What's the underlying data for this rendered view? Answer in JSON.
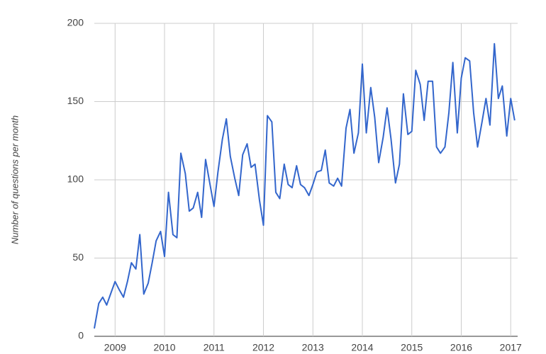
{
  "chart_data": {
    "type": "line",
    "y_label": "Number of questions per month",
    "x": [
      2008.58,
      2008.67,
      2008.75,
      2008.83,
      2008.92,
      2009.0,
      2009.08,
      2009.17,
      2009.25,
      2009.33,
      2009.42,
      2009.5,
      2009.58,
      2009.67,
      2009.75,
      2009.83,
      2009.92,
      2010.0,
      2010.08,
      2010.17,
      2010.25,
      2010.33,
      2010.42,
      2010.5,
      2010.58,
      2010.67,
      2010.75,
      2010.83,
      2010.92,
      2011.0,
      2011.08,
      2011.17,
      2011.25,
      2011.33,
      2011.42,
      2011.5,
      2011.58,
      2011.67,
      2011.75,
      2011.83,
      2011.92,
      2012.0,
      2012.08,
      2012.17,
      2012.25,
      2012.33,
      2012.42,
      2012.5,
      2012.58,
      2012.67,
      2012.75,
      2012.83,
      2012.92,
      2013.0,
      2013.08,
      2013.17,
      2013.25,
      2013.33,
      2013.42,
      2013.5,
      2013.58,
      2013.67,
      2013.75,
      2013.83,
      2013.92,
      2014.0,
      2014.08,
      2014.17,
      2014.25,
      2014.33,
      2014.42,
      2014.5,
      2014.58,
      2014.67,
      2014.75,
      2014.83,
      2014.92,
      2015.0,
      2015.08,
      2015.17,
      2015.25,
      2015.33,
      2015.42,
      2015.5,
      2015.58,
      2015.67,
      2015.75,
      2015.83,
      2015.92,
      2016.0,
      2016.08,
      2016.17,
      2016.25,
      2016.33,
      2016.42,
      2016.5,
      2016.58,
      2016.67,
      2016.75,
      2016.83,
      2016.92,
      2017.0,
      2017.08
    ],
    "series": [
      {
        "color": "#3366cc",
        "values": [
          5,
          21,
          25,
          20,
          28,
          35,
          30,
          25,
          35,
          47,
          43,
          65,
          27,
          34,
          47,
          61,
          67,
          51,
          92,
          65,
          63,
          117,
          104,
          80,
          82,
          92,
          76,
          113,
          97,
          83,
          105,
          126,
          139,
          115,
          101,
          90,
          116,
          123,
          108,
          110,
          87,
          71,
          141,
          137,
          92,
          88,
          110,
          97,
          95,
          109,
          97,
          95,
          90,
          97,
          105,
          106,
          119,
          98,
          96,
          101,
          96,
          133,
          145,
          117,
          130,
          174,
          130,
          159,
          140,
          111,
          127,
          146,
          126,
          98,
          110,
          155,
          129,
          131,
          170,
          161,
          138,
          163,
          163,
          121,
          117,
          121,
          143,
          175,
          130,
          165,
          178,
          176,
          143,
          121,
          137,
          152,
          135,
          187,
          152,
          160,
          128,
          152,
          138
        ]
      }
    ],
    "xlim": [
      2008.58,
      2017.14
    ],
    "ylim": [
      0,
      200
    ],
    "xticks": [
      2009,
      2010,
      2011,
      2012,
      2013,
      2014,
      2015,
      2016,
      2017
    ],
    "yticks": [
      0,
      50,
      100,
      150,
      200
    ],
    "grid": true
  }
}
